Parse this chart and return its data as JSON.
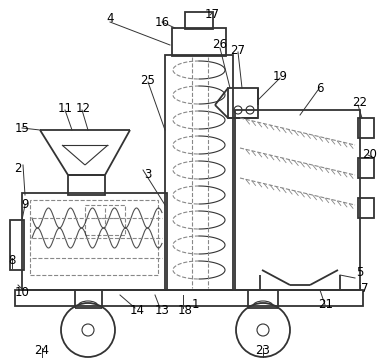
{
  "bg_color": "#ffffff",
  "line_color": "#333333",
  "dashed_color": "#888888",
  "label_color": "#000000",
  "label_fontsize": 8.5,
  "fig_width": 3.77,
  "fig_height": 3.59,
  "dpi": 100
}
